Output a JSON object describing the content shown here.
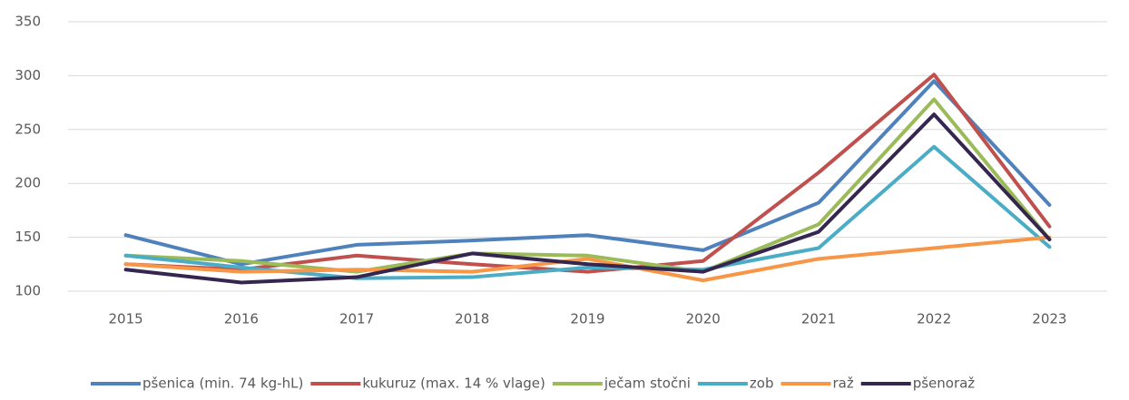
{
  "chart_data": {
    "type": "line",
    "categories": [
      "2015",
      "2016",
      "2017",
      "2018",
      "2019",
      "2020",
      "2021",
      "2022",
      "2023"
    ],
    "series": [
      {
        "name": "pšenica (min. 74 kg-hL)",
        "color": "#4f81bd",
        "values": [
          152,
          125,
          143,
          147,
          152,
          138,
          182,
          295,
          180
        ]
      },
      {
        "name": "kukuruz (max. 14 % vlage)",
        "color": "#c0504d",
        "values": [
          125,
          120,
          133,
          125,
          118,
          128,
          210,
          301,
          160
        ]
      },
      {
        "name": "ječam stočni",
        "color": "#9bbb59",
        "values": [
          133,
          128,
          118,
          135,
          133,
          118,
          162,
          278,
          148
        ]
      },
      {
        "name": "zob",
        "color": "#4bacc6",
        "values": [
          133,
          122,
          112,
          113,
          122,
          120,
          140,
          234,
          141
        ]
      },
      {
        "name": "raž",
        "color": "#f79646",
        "values": [
          125,
          118,
          120,
          118,
          130,
          110,
          130,
          140,
          150
        ]
      },
      {
        "name": "pšenoraž",
        "color": "#35264f",
        "values": [
          120,
          108,
          113,
          135,
          125,
          118,
          155,
          264,
          148
        ]
      }
    ],
    "ylim": [
      100,
      350
    ],
    "yticks": [
      100,
      150,
      200,
      250,
      300,
      350
    ],
    "grid": true,
    "legend": "bottom"
  }
}
